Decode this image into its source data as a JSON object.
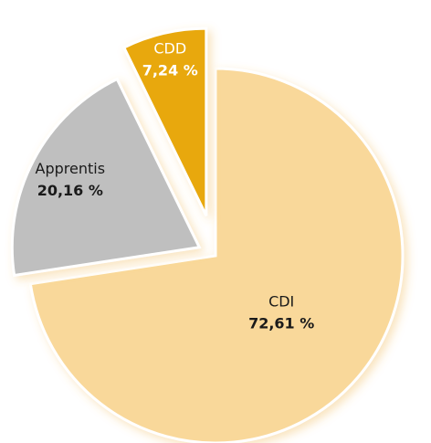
{
  "chart_data": {
    "type": "pie",
    "categories": [
      "CDI",
      "Apprentis",
      "CDD"
    ],
    "values": [
      72.61,
      20.16,
      7.24
    ],
    "value_labels": [
      "72,61 %",
      "20,16 %",
      "7,24 %"
    ],
    "colors": [
      "#f9d89a",
      "#bfbfbf",
      "#e8a80c"
    ],
    "label_colors": [
      "#1a1a1a",
      "#1a1a1a",
      "#ffffff"
    ]
  }
}
